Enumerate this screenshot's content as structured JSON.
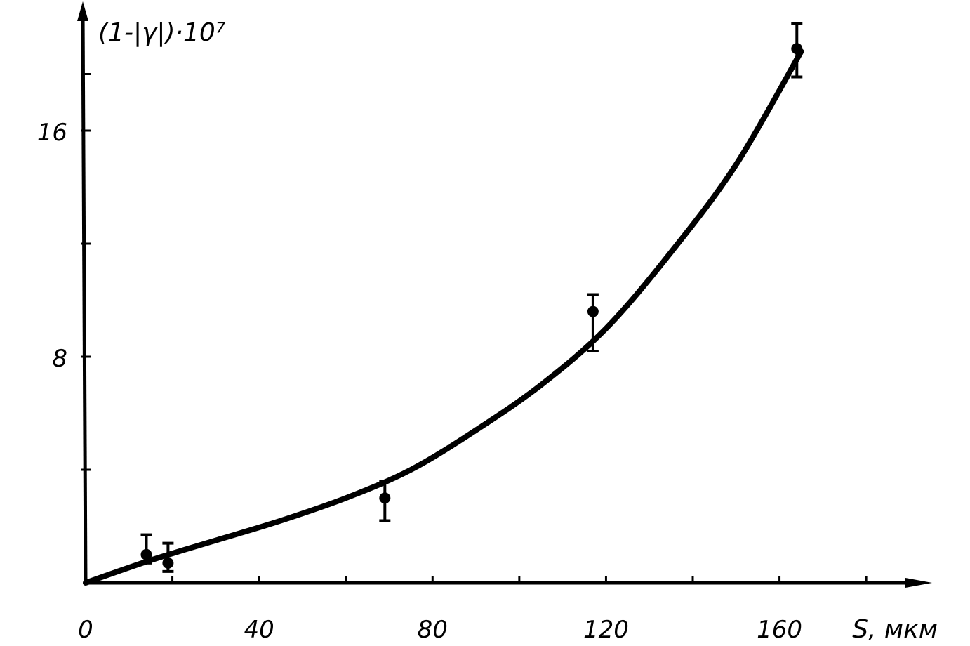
{
  "chart_data": {
    "type": "scatter",
    "ylabel": "(1-|γ|)·10⁷",
    "xlabel": "S, мкм",
    "xlim": [
      0,
      195
    ],
    "ylim": [
      0,
      20
    ],
    "x_ticks": [
      0,
      40,
      80,
      120,
      160
    ],
    "y_ticks": [
      8,
      16
    ],
    "x_minor_ticks": [
      20,
      60,
      100,
      140,
      180
    ],
    "y_minor_ticks": [
      4,
      12,
      18
    ],
    "grid": false,
    "legend": "none",
    "series": [
      {
        "points": [
          {
            "x": 14,
            "y": 1.0,
            "err_low": 0.7,
            "err_high": 1.7
          },
          {
            "x": 19,
            "y": 0.7,
            "err_low": 0.4,
            "err_high": 1.4
          },
          {
            "x": 69,
            "y": 3.0,
            "err_low": 2.2,
            "err_high": 3.6
          },
          {
            "x": 117,
            "y": 9.6,
            "err_low": 8.2,
            "err_high": 10.2
          },
          {
            "x": 164,
            "y": 18.9,
            "err_low": 17.9,
            "err_high": 19.8
          }
        ]
      }
    ],
    "fit_curve": {
      "x": [
        0,
        15,
        30,
        45,
        60,
        75,
        90,
        105,
        120,
        135,
        150,
        165
      ],
      "y": [
        0,
        0.8,
        1.5,
        2.2,
        3.0,
        4.0,
        5.4,
        7.0,
        9.0,
        11.7,
        14.8,
        18.8
      ]
    }
  }
}
